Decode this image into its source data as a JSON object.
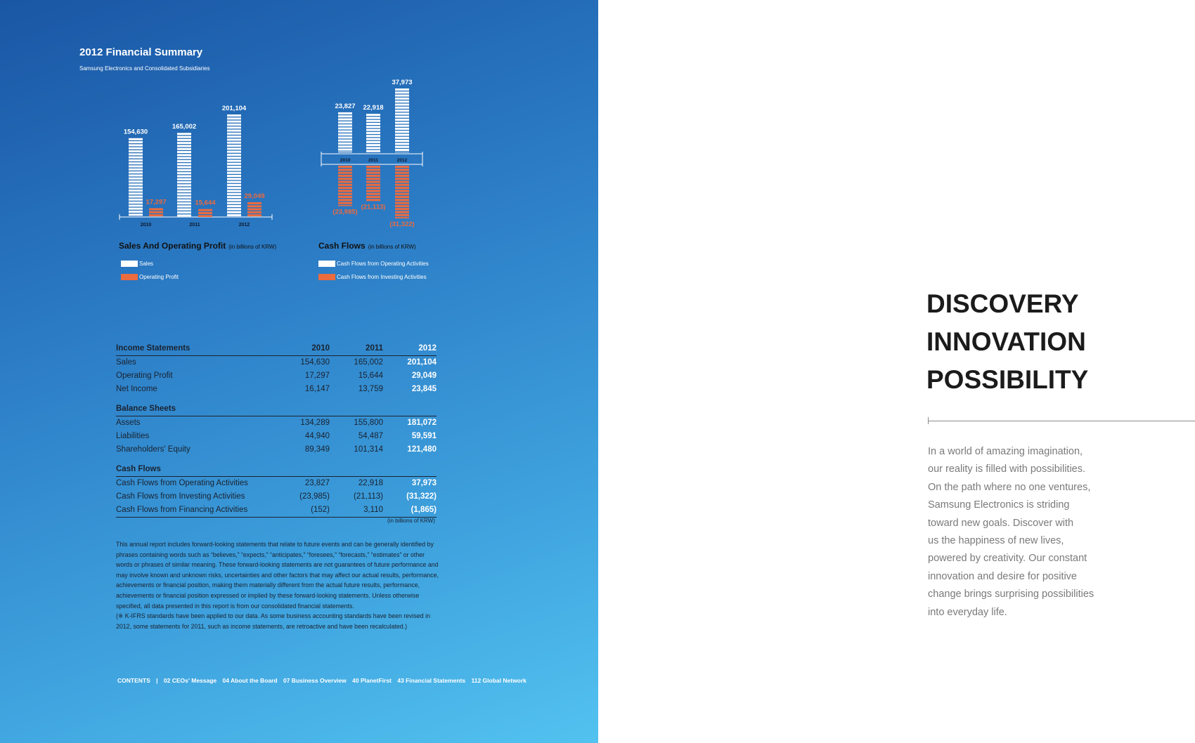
{
  "report": {
    "title": "2012 Financial Summary",
    "subtitle": "Samsung Electronics and Consolidated Subsidiaries"
  },
  "charts": {
    "sales_title": "Sales And Operating Profit",
    "sales_unit": "(in billions of KRW)",
    "cash_title": "Cash Flows",
    "cash_unit": "(in billions of KRW)",
    "legend_sales": "Sales",
    "legend_op": "Operating Profit",
    "legend_cfo": "Cash Flows from Operating Activities",
    "legend_cfi": "Cash Flows from Investing Activities",
    "colors": {
      "white": "#ffffff",
      "orange": "#ec6b3f"
    }
  },
  "chart_data": [
    {
      "type": "bar",
      "categories": [
        "2010",
        "2011",
        "2012"
      ],
      "series": [
        {
          "name": "Sales",
          "values": [
            154630,
            165002,
            201104
          ],
          "labels": [
            "154,630",
            "165,002",
            "201,104"
          ]
        },
        {
          "name": "Operating Profit",
          "values": [
            17297,
            15644,
            29049
          ],
          "labels": [
            "17,297",
            "15,644",
            "29,049"
          ]
        }
      ],
      "title": "Sales And Operating Profit",
      "ylabel": "(in billions of KRW)"
    },
    {
      "type": "bar",
      "categories": [
        "2010",
        "2011",
        "2012"
      ],
      "series": [
        {
          "name": "Cash Flows from Operating Activities",
          "values": [
            23827,
            22918,
            37973
          ],
          "labels": [
            "23,827",
            "22,918",
            "37,973"
          ]
        },
        {
          "name": "Cash Flows from Investing Activities",
          "values": [
            -23985,
            -21113,
            -31322
          ],
          "labels": [
            "(23,985)",
            "(21,113)",
            "(31,322)"
          ]
        }
      ],
      "title": "Cash Flows",
      "ylabel": "(in billions of KRW)"
    }
  ],
  "table": {
    "years": [
      "2010",
      "2011",
      "2012"
    ],
    "sections": [
      {
        "heading": "Income Statements",
        "rows": [
          {
            "label": "Sales",
            "values": [
              "154,630",
              "165,002",
              "201,104"
            ]
          },
          {
            "label": "Operating Profit",
            "values": [
              "17,297",
              "15,644",
              "29,049"
            ]
          },
          {
            "label": "Net Income",
            "values": [
              "16,147",
              "13,759",
              "23,845"
            ]
          }
        ]
      },
      {
        "heading": "Balance Sheets",
        "rows": [
          {
            "label": "Assets",
            "values": [
              "134,289",
              "155,800",
              "181,072"
            ]
          },
          {
            "label": "Liabilities",
            "values": [
              "44,940",
              "54,487",
              "59,591"
            ]
          },
          {
            "label": "Shareholders' Equity",
            "values": [
              "89,349",
              "101,314",
              "121,480"
            ]
          }
        ]
      },
      {
        "heading": "Cash Flows",
        "rows": [
          {
            "label": "Cash Flows from Operating Activities",
            "values": [
              "23,827",
              "22,918",
              "37,973"
            ]
          },
          {
            "label": "Cash Flows from Investing Activities",
            "values": [
              "(23,985)",
              "(21,113)",
              "(31,322)"
            ]
          },
          {
            "label": "Cash Flows from Financing Activities",
            "values": [
              "(152)",
              "3,110",
              "(1,865)"
            ]
          }
        ]
      }
    ],
    "unit_note": "(in billions of KRW)"
  },
  "disclaimer": "This annual report includes forward-looking statements that relate to future events and can be generally identified by phrases containing words such as “believes,” “expects,” “anticipates,” “foresees,” “forecasts,” “estimates” or other words or phrases of similar meaning. These forward-looking statements are not guarantees of future performance and may involve known and unknown risks, uncertainties and other factors that may affect our actual results, performance, achievements or financial position, making them materially different from the actual future results, performance, achievements or financial position expressed or implied by these forward-looking statements. Unless otherwise specified, all data presented in this report is from our consolidated financial statements.",
  "ifrs_note": "(※ K-IFRS standards have been applied to our data. As some business accounting standards have been revised in 2012, some statements for 2011, such as income statements, are retroactive and have been recalculated.)",
  "toc": {
    "label": "CONTENTS",
    "separator": "|",
    "items": [
      "02 CEOs' Message",
      "04 About the Board",
      "07 Business Overview",
      "40 PlanetFirst",
      "43 Financial Statements",
      "112 Global Network"
    ]
  },
  "right": {
    "headline": [
      "DISCOVERY",
      "INNOVATION",
      "POSSIBILITY"
    ],
    "body": [
      "In a world of amazing imagination,",
      "our reality is filled with possibilities.",
      "On the path where no one ventures,",
      "Samsung Electronics is striding",
      "toward new goals. Discover with",
      "us the happiness of new lives,",
      "powered by creativity. Our constant",
      "innovation and desire for positive",
      "change brings surprising possibilities",
      "into everyday life."
    ]
  }
}
